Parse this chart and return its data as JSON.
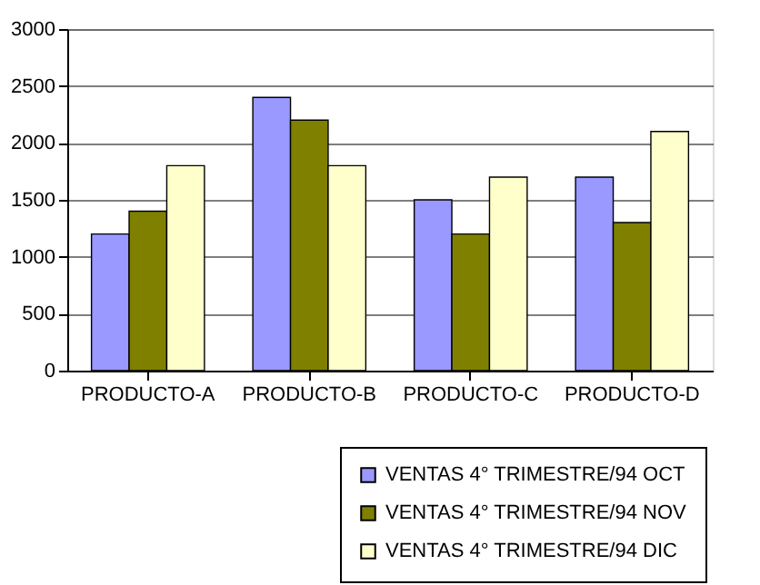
{
  "chart_data": {
    "type": "bar",
    "categories": [
      "PRODUCTO-A",
      "PRODUCTO-B",
      "PRODUCTO-C",
      "PRODUCTO-D"
    ],
    "series": [
      {
        "name": "VENTAS 4° TRIMESTRE/94 OCT",
        "color": "#9999ff",
        "values": [
          1200,
          2400,
          1500,
          1700
        ]
      },
      {
        "name": "VENTAS 4° TRIMESTRE/94 NOV",
        "color": "#808000",
        "values": [
          1400,
          2200,
          1200,
          1300
        ]
      },
      {
        "name": "VENTAS 4° TRIMESTRE/94 DIC",
        "color": "#ffffcc",
        "values": [
          1800,
          1800,
          1700,
          2100
        ]
      }
    ],
    "ylim": [
      0,
      3000
    ],
    "yticks": [
      0,
      500,
      1000,
      1500,
      2000,
      2500,
      3000
    ],
    "grid": "y",
    "legend": "bottom right"
  }
}
